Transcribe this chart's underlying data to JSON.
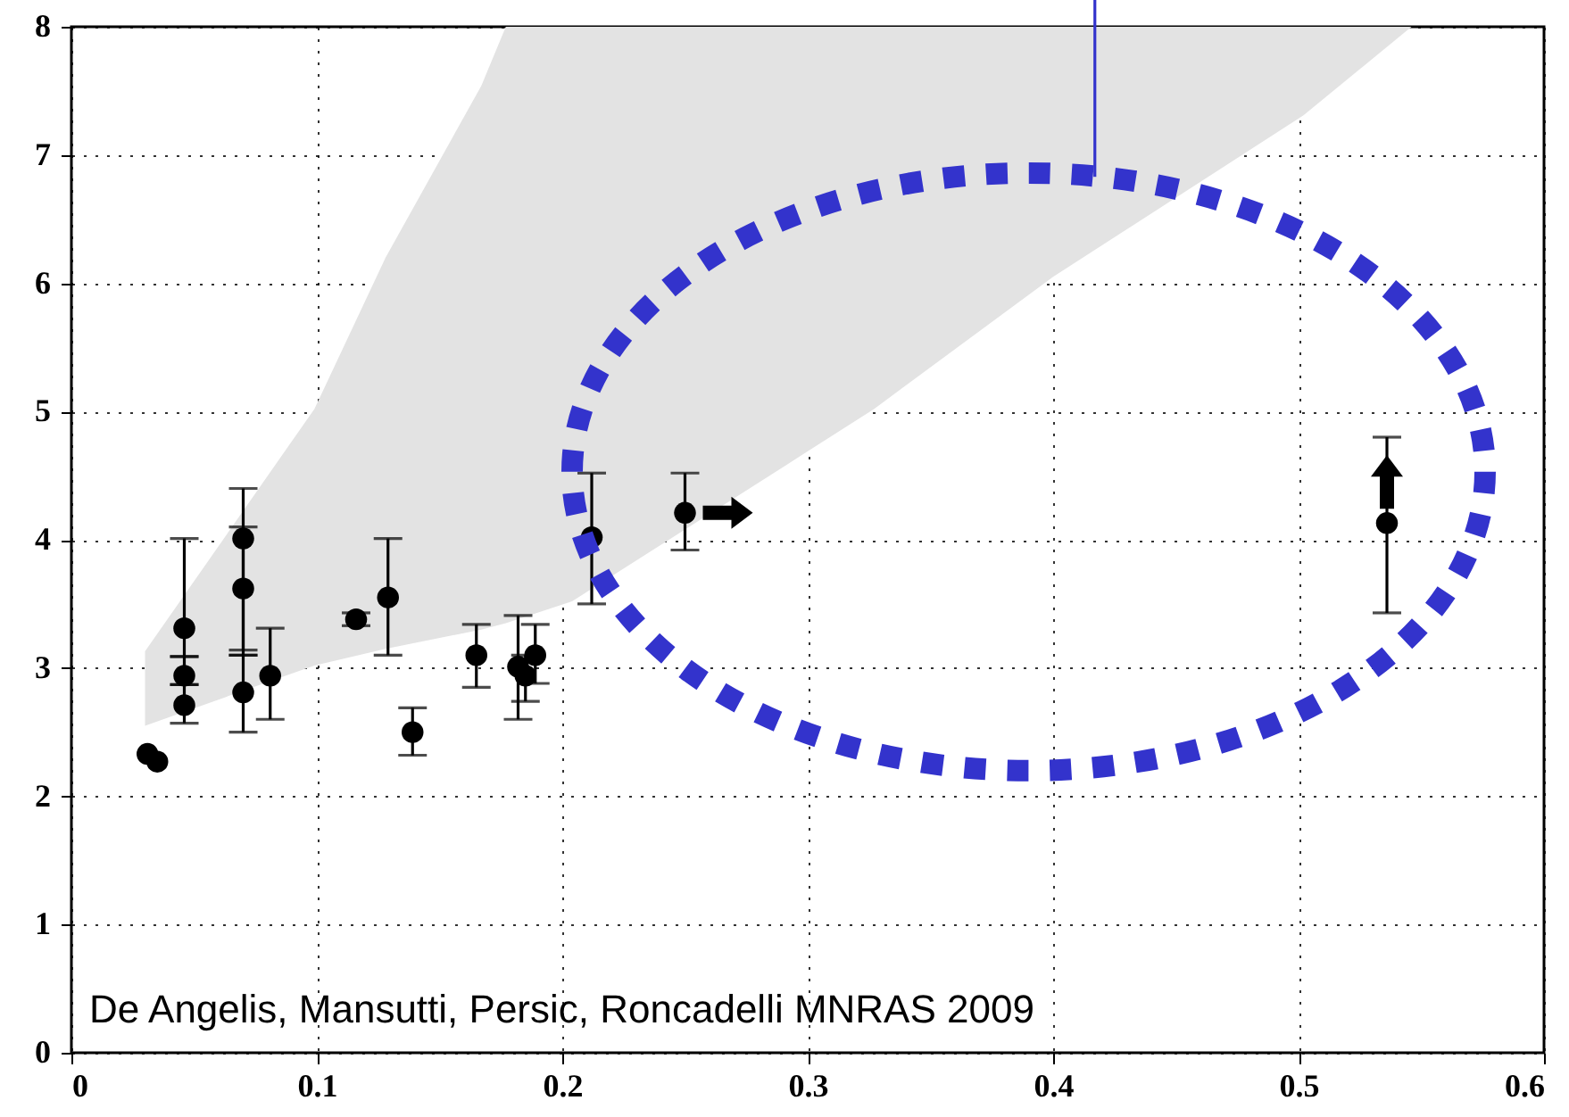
{
  "chart_data": {
    "type": "scatter",
    "xlim": [
      0,
      0.6
    ],
    "ylim": [
      0,
      8
    ],
    "xticks": [
      0,
      0.1,
      0.2,
      0.3,
      0.4,
      0.5,
      0.6
    ],
    "yticks": [
      0,
      1,
      2,
      3,
      4,
      5,
      6,
      7,
      8
    ],
    "grid": true,
    "annotations": [
      "De Angelis, Mansutti, Persic, Roncadelli MNRAS 2009"
    ],
    "series": [
      {
        "type": "area",
        "color": "#e3e3e3",
        "x": [
          0.03,
          0.099,
          0.128,
          0.167,
          0.177,
          0.204,
          0.291,
          0.327,
          0.4,
          0.502,
          0.546
        ],
        "values": [
          null,
          null,
          null,
          null,
          null,
          null,
          null,
          null,
          null,
          null,
          null
        ],
        "lower": [
          2.55,
          3.02,
          3.15,
          3.3,
          3.35,
          3.52,
          4.58,
          5.02,
          6.05,
          7.31,
          8
        ],
        "upper": [
          3.13,
          5.02,
          6.2,
          7.54,
          8,
          8,
          8,
          8,
          8,
          8,
          8
        ]
      },
      {
        "marker": "circle",
        "color": "#000000",
        "x": [
          0.031,
          0.035,
          0.046,
          0.046,
          0.046,
          0.07,
          0.07,
          0.07,
          0.081,
          0.116,
          0.129,
          0.139,
          0.165,
          0.182,
          0.185,
          0.189,
          0.212,
          0.25,
          0.536
        ],
        "values": [
          2.33,
          2.27,
          3.31,
          2.94,
          2.71,
          4.01,
          3.62,
          2.81,
          2.94,
          3.38,
          3.55,
          2.5,
          3.1,
          3.01,
          2.94,
          3.1,
          4.02,
          4.21,
          4.13
        ],
        "errors": [
          null,
          null,
          [
            3.09,
            4.01
          ],
          [
            2.87,
            3.09
          ],
          [
            2.57,
            2.87
          ],
          [
            3.1,
            4.4
          ],
          [
            3.14,
            4.1
          ],
          [
            2.5,
            3.1
          ],
          [
            2.6,
            3.31
          ],
          [
            3.33,
            3.43
          ],
          [
            3.1,
            4.01
          ],
          [
            2.32,
            2.69
          ],
          [
            2.85,
            3.34
          ],
          [
            2.6,
            3.41
          ],
          [
            2.74,
            3.1
          ],
          [
            2.88,
            3.34
          ],
          [
            3.5,
            4.52
          ],
          [
            3.92,
            4.52
          ],
          [
            3.43,
            4.8
          ]
        ]
      }
    ]
  }
}
